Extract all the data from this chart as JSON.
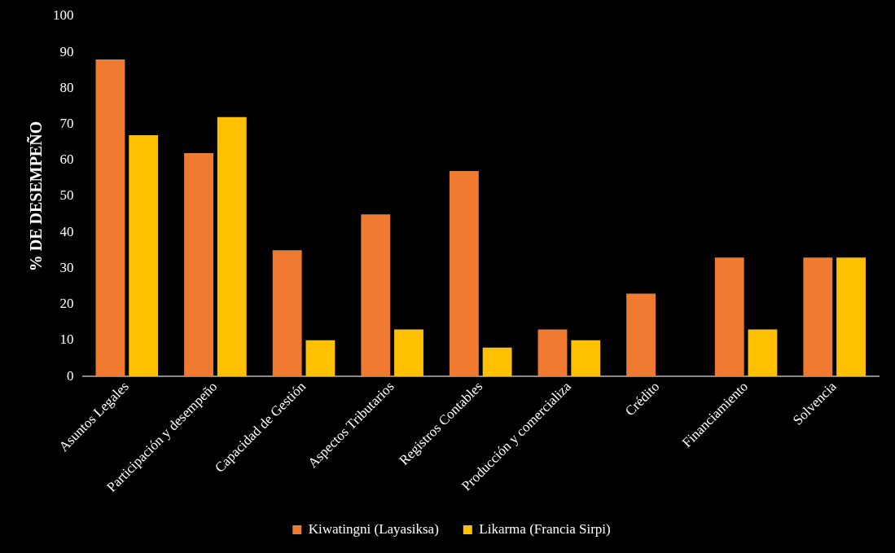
{
  "chart_data": {
    "type": "bar",
    "ylabel": "% DE DESEMPEÑO",
    "categories": [
      "Asuntos Legales",
      "Participación y desempeño",
      "Capacidad de Gestión",
      "Aspectos Tributarios",
      "Registros Contables",
      "Producción y comercializa",
      "Crédito",
      "Financiamiento",
      "Solvencia"
    ],
    "series": [
      {
        "name": "Kiwatingni (Layasiksa)",
        "color": "#f07a30",
        "values": [
          88,
          62,
          35,
          45,
          57,
          13,
          23,
          33,
          33
        ]
      },
      {
        "name": "Likarma (Francia Sirpi)",
        "color": "#ffc000",
        "values": [
          67,
          72,
          10,
          13,
          8,
          10,
          0,
          13,
          33
        ]
      }
    ],
    "ylim": [
      0,
      100
    ],
    "yticks": [
      0,
      10,
      20,
      30,
      40,
      50,
      60,
      70,
      80,
      90,
      100
    ],
    "grid": false,
    "legend": "bottom"
  }
}
